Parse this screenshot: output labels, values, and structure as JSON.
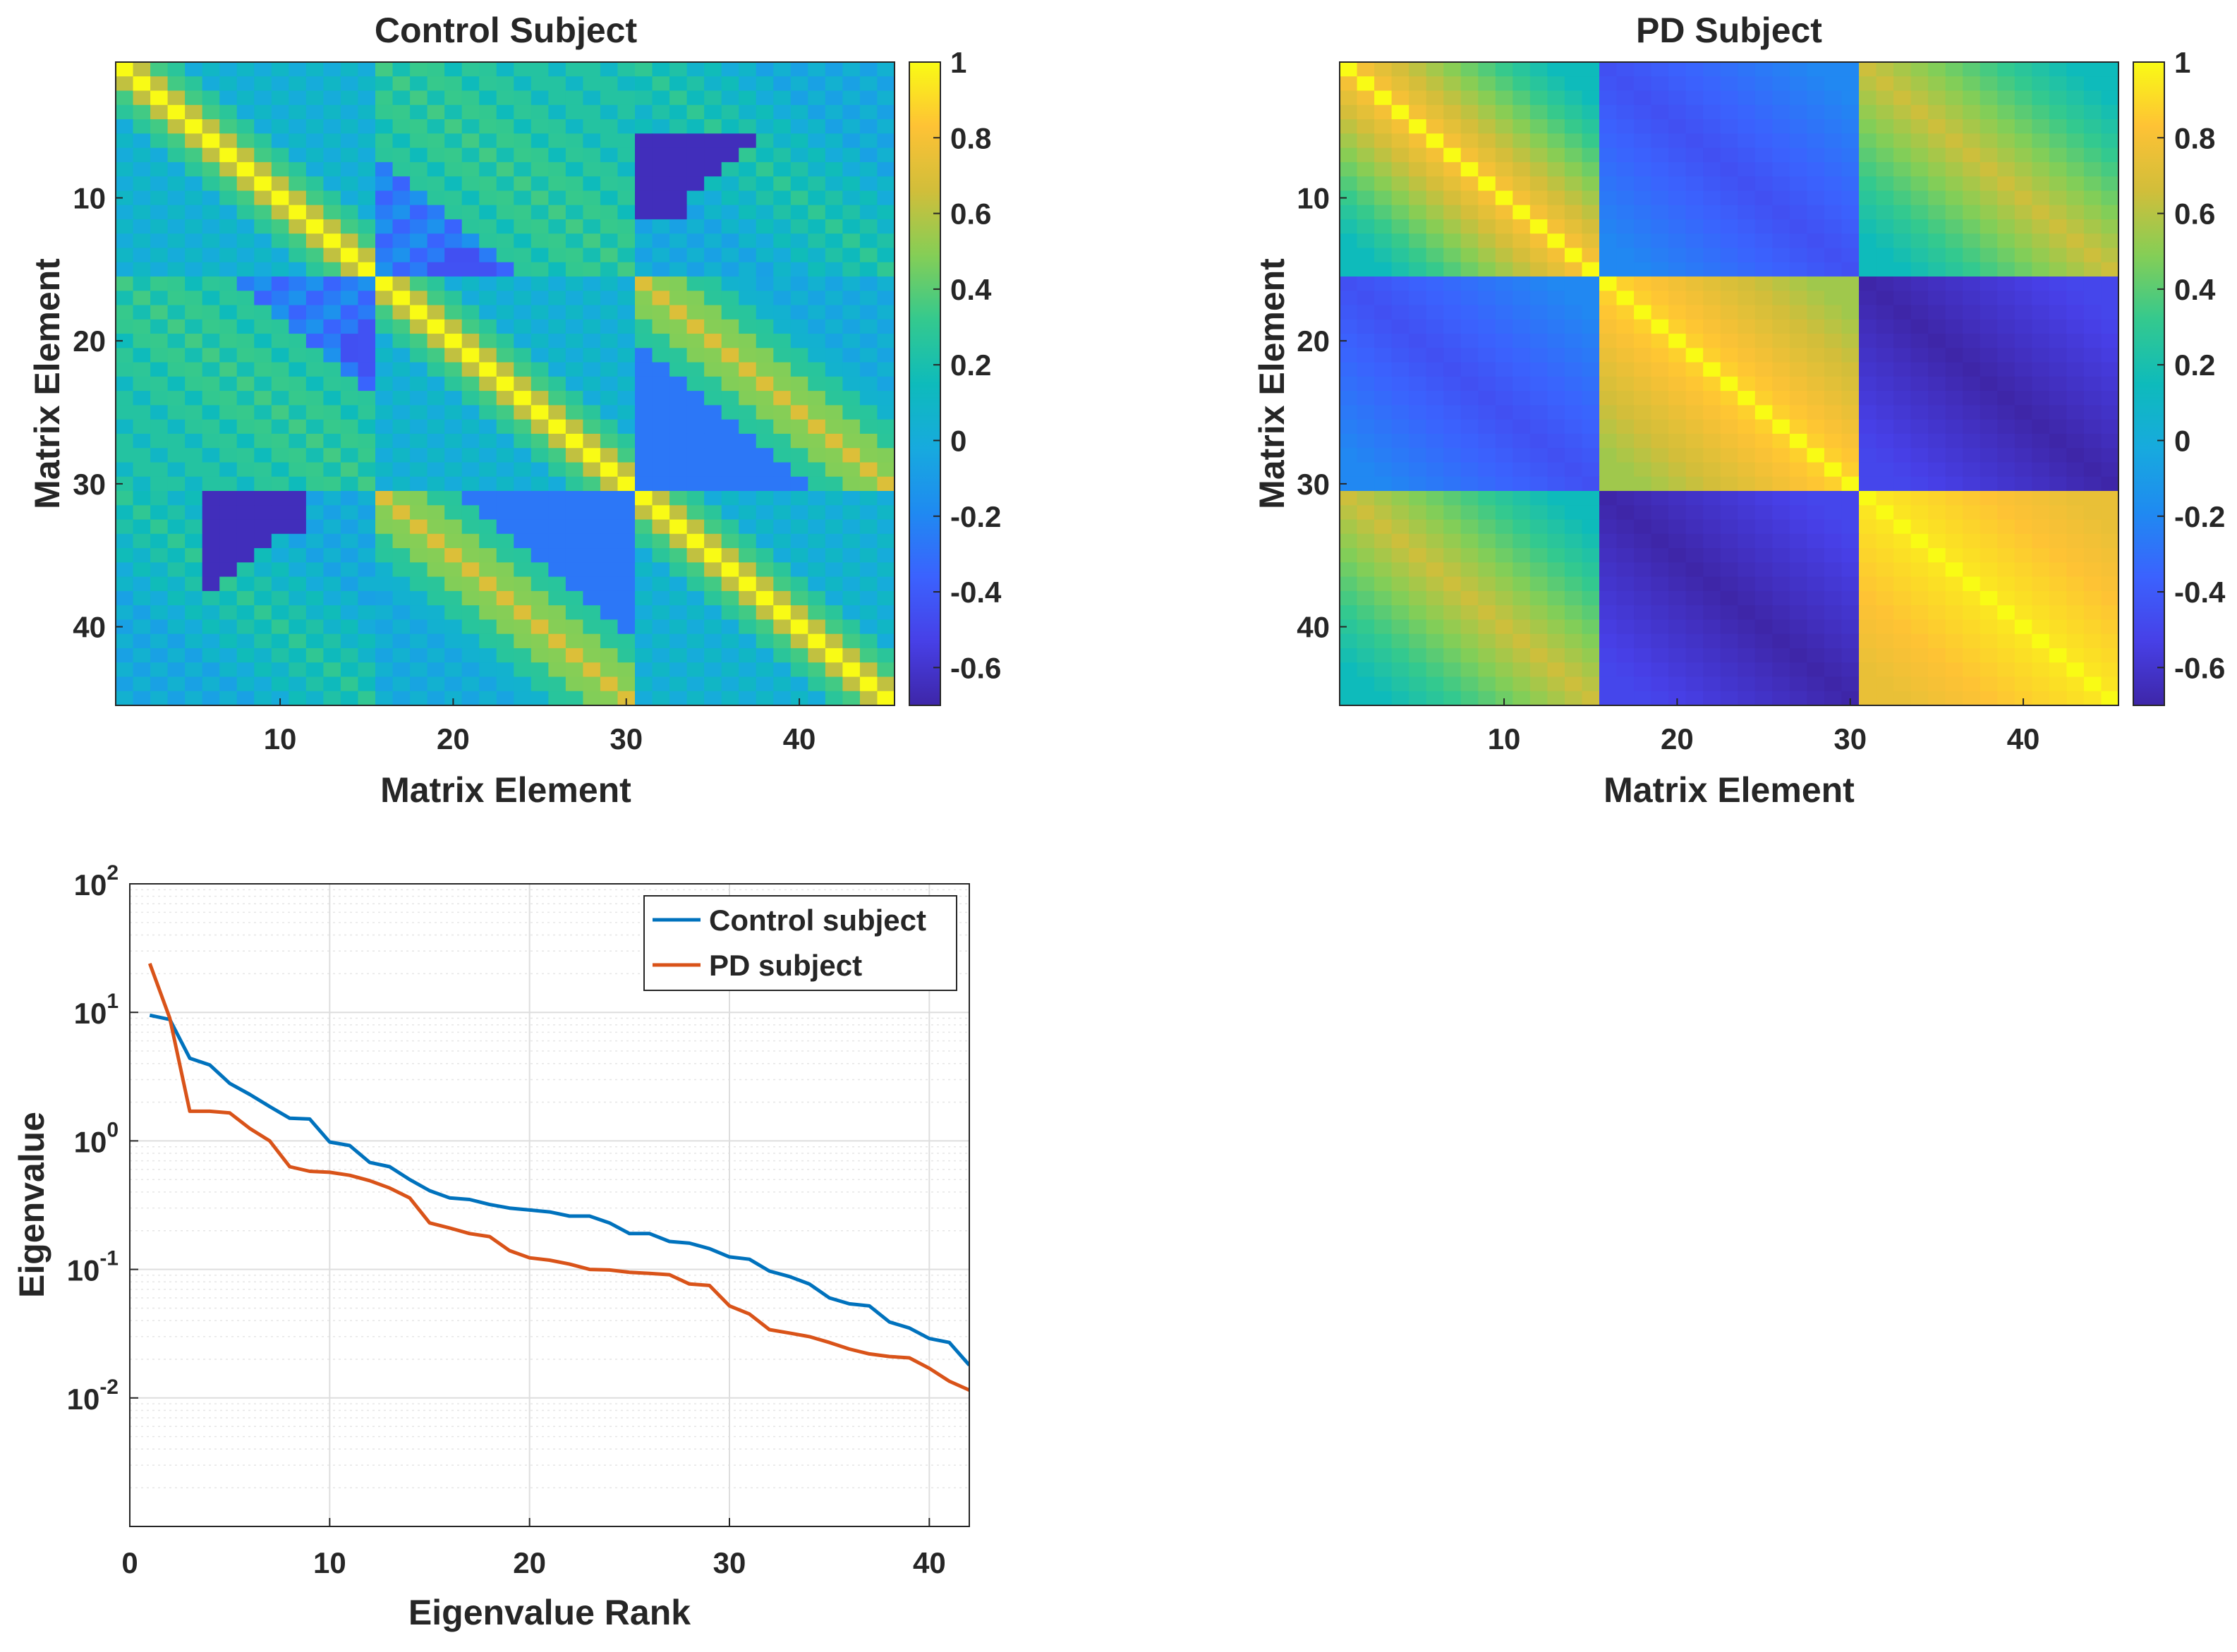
{
  "colors": {
    "control_line": "#0072BD",
    "pd_line": "#D95319",
    "axis": "#262626",
    "grid": "#DEDEDE",
    "colormap": "parula"
  },
  "chart_data": [
    {
      "type": "heatmap",
      "title": "Control Subject",
      "xlabel": "Matrix Element",
      "ylabel": "Matrix Element",
      "size": 45,
      "block_size": 15,
      "xticks": [
        10,
        20,
        30,
        40
      ],
      "yticks": [
        10,
        20,
        30,
        40
      ],
      "colorbar": {
        "clim": [
          -0.7,
          1
        ],
        "ticks": [
          1,
          0.8,
          0.6,
          0.4,
          0.2,
          0,
          -0.2,
          -0.4,
          -0.6
        ],
        "tick_labels": [
          "1",
          "0.8",
          "0.6",
          "0.4",
          "0.2",
          "0",
          "-0.2",
          "-0.4",
          "-0.6"
        ]
      },
      "block_pattern": {
        "diagonal_blocks": {
          "diagonal": 1.0,
          "near_diagonal": 0.75,
          "far": 0.05
        },
        "block_1_2": {
          "band": 0.35,
          "upper_left": 0.25,
          "lower_corner": -0.5
        },
        "block_1_3": {
          "band": 0.3,
          "lower_corner": -0.65
        },
        "block_2_3": {
          "band": 0.7,
          "upper_corner": -0.45
        }
      }
    },
    {
      "type": "heatmap",
      "title": "PD Subject",
      "xlabel": "Matrix Element",
      "ylabel": "Matrix Element",
      "size": 45,
      "block_size": 15,
      "xticks": [
        10,
        20,
        30,
        40
      ],
      "yticks": [
        10,
        20,
        30,
        40
      ],
      "colorbar": {
        "clim": [
          -0.7,
          1
        ],
        "ticks": [
          1,
          0.8,
          0.6,
          0.4,
          0.2,
          0,
          -0.2,
          -0.4,
          -0.6
        ],
        "tick_labels": [
          "1",
          "0.8",
          "0.6",
          "0.4",
          "0.2",
          "0",
          "-0.2",
          "-0.4",
          "-0.6"
        ]
      },
      "block_pattern": {
        "block_1_1": {
          "diagonal": 1.0,
          "near_diagonal": 0.85,
          "far": 0.15
        },
        "block_2_2": {
          "diagonal": 1.0,
          "near_diagonal": 0.9,
          "far": 0.55
        },
        "block_3_3": {
          "diagonal": 1.0,
          "near_diagonal": 0.95,
          "far": 0.75
        },
        "block_1_2": {
          "band": -0.45,
          "far": -0.2
        },
        "block_1_3": {
          "band": 0.65,
          "far": 0.15
        },
        "block_2_3": {
          "band": -0.7,
          "far": -0.5
        }
      }
    },
    {
      "type": "line",
      "title": "",
      "xlabel": "Eigenvalue Rank",
      "ylabel": "Eigenvalue",
      "yscale": "log",
      "xlim": [
        0,
        42
      ],
      "ylim": [
        0.001,
        100
      ],
      "xticks": [
        0,
        10,
        20,
        30,
        40
      ],
      "yticks": [
        0.01,
        0.1,
        1,
        10,
        100
      ],
      "ytick_labels": [
        {
          "base": "10",
          "exp": "-2"
        },
        {
          "base": "10",
          "exp": "-1"
        },
        {
          "base": "10",
          "exp": "0"
        },
        {
          "base": "10",
          "exp": "1"
        },
        {
          "base": "10",
          "exp": "2"
        }
      ],
      "grid": true,
      "legend_position": "top-right",
      "x": [
        1,
        2,
        3,
        4,
        5,
        6,
        7,
        8,
        9,
        10,
        11,
        12,
        13,
        14,
        15,
        16,
        17,
        18,
        19,
        20,
        21,
        22,
        23,
        24,
        25,
        26,
        27,
        28,
        29,
        30,
        31,
        32,
        33,
        34,
        35,
        36,
        37,
        38,
        39,
        40,
        41,
        42
      ],
      "series": [
        {
          "name": "Control subject",
          "color": "#0072BD",
          "values": [
            9.5,
            8.8,
            4.4,
            3.9,
            2.8,
            2.3,
            1.85,
            1.5,
            1.48,
            0.98,
            0.92,
            0.68,
            0.63,
            0.5,
            0.41,
            0.36,
            0.35,
            0.32,
            0.3,
            0.29,
            0.28,
            0.26,
            0.26,
            0.23,
            0.19,
            0.19,
            0.165,
            0.16,
            0.145,
            0.125,
            0.12,
            0.097,
            0.088,
            0.077,
            0.06,
            0.054,
            0.052,
            0.039,
            0.035,
            0.029,
            0.027,
            0.018
          ]
        },
        {
          "name": "PD subject",
          "color": "#D95319",
          "values": [
            24,
            9.0,
            1.7,
            1.7,
            1.65,
            1.25,
            1.0,
            0.63,
            0.58,
            0.57,
            0.54,
            0.49,
            0.43,
            0.36,
            0.23,
            0.21,
            0.19,
            0.18,
            0.14,
            0.123,
            0.118,
            0.11,
            0.1,
            0.099,
            0.095,
            0.093,
            0.091,
            0.077,
            0.075,
            0.052,
            0.045,
            0.034,
            0.032,
            0.03,
            0.027,
            0.024,
            0.022,
            0.021,
            0.0205,
            0.017,
            0.0135,
            0.0115
          ]
        }
      ]
    }
  ]
}
